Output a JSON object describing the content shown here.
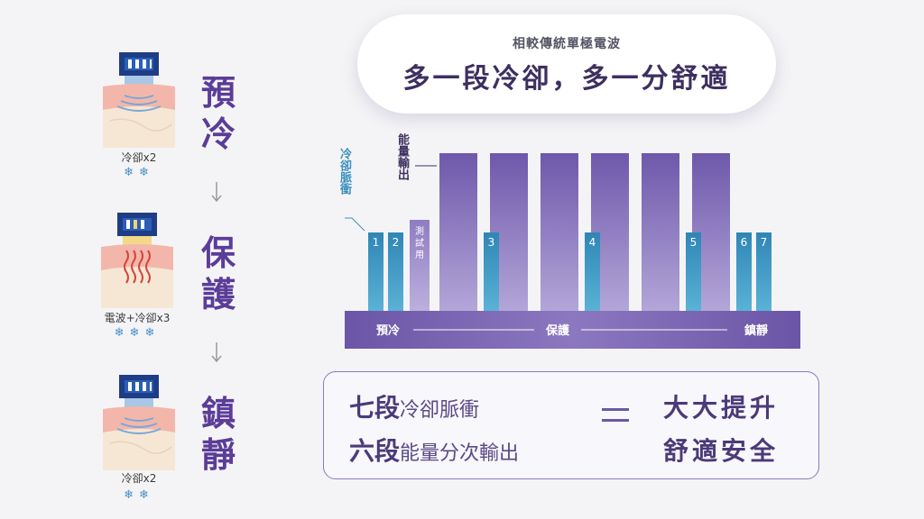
{
  "steps": [
    {
      "caption": "冷卻x2",
      "snowflakes": "❄❄",
      "illustration": "cooling-probe-icon",
      "waves": "blue"
    },
    {
      "caption": "電波+冷卻x3",
      "snowflakes": "❄❄❄",
      "illustration": "rf-probe-icon",
      "waves": "red"
    },
    {
      "caption": "冷卻x2",
      "snowflakes": "❄❄",
      "illustration": "cooling-probe-icon",
      "waves": "blue"
    }
  ],
  "stages": [
    {
      "title": "預冷"
    },
    {
      "title": "保護"
    },
    {
      "title": "鎮靜"
    }
  ],
  "header": {
    "subtitle": "相較傳統單極電波",
    "title": "多一段冷卻，多一分舒適"
  },
  "colors": {
    "purple": "#5b3d98",
    "bar_purple": "#7e69b5",
    "pulse_blue": "#3b8fbe",
    "base_purple": "#6d58a8"
  },
  "chart_data": {
    "type": "bar",
    "legend": {
      "cooling": "冷卻脈衝",
      "energy": "能量輸出"
    },
    "test_label": "測試用",
    "pulses": [
      "1",
      "2",
      "3",
      "4",
      "5",
      "6",
      "7"
    ],
    "energy_outputs": 6,
    "phases": [
      "預冷",
      "保護",
      "鎮靜"
    ]
  },
  "summary": {
    "line1_big": "七段",
    "line1_small": "冷卻脈衝",
    "line2_big": "六段",
    "line2_small": "能量分次輸出",
    "result1": "大大提升",
    "result2": "舒適安全"
  }
}
